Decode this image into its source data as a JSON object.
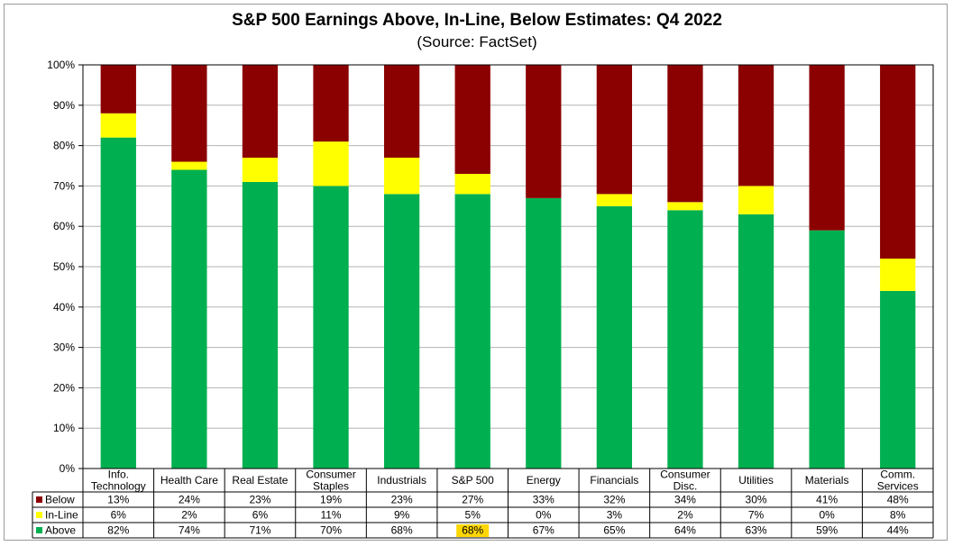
{
  "chart_data": {
    "type": "bar",
    "stacked": true,
    "title": "S&P 500 Earnings Above, In-Line, Below Estimates: Q4 2022",
    "subtitle": "(Source: FactSet)",
    "categories": [
      [
        "Info.",
        "Technology"
      ],
      [
        "Health Care"
      ],
      [
        "Real Estate"
      ],
      [
        "Consumer",
        "Staples"
      ],
      [
        "Industrials"
      ],
      [
        "S&P 500"
      ],
      [
        "Energy"
      ],
      [
        "Financials"
      ],
      [
        "Consumer",
        "Disc."
      ],
      [
        "Utilities"
      ],
      [
        "Materials"
      ],
      [
        "Comm.",
        "Services"
      ]
    ],
    "series": [
      {
        "name": "Above",
        "color": "#00b050",
        "values": [
          82,
          74,
          71,
          70,
          68,
          68,
          67,
          65,
          64,
          63,
          59,
          44
        ],
        "labels": [
          "82%",
          "74%",
          "71%",
          "70%",
          "68%",
          "68%",
          "67%",
          "65%",
          "64%",
          "63%",
          "59%",
          "44%"
        ]
      },
      {
        "name": "In-Line",
        "color": "#ffff00",
        "values": [
          6,
          2,
          6,
          11,
          9,
          5,
          0,
          3,
          2,
          7,
          0,
          8
        ],
        "labels": [
          "6%",
          "2%",
          "6%",
          "11%",
          "9%",
          "5%",
          "0%",
          "3%",
          "2%",
          "7%",
          "0%",
          "8%"
        ]
      },
      {
        "name": "Below",
        "color": "#8b0000",
        "values": [
          13,
          24,
          23,
          19,
          23,
          27,
          33,
          32,
          34,
          30,
          41,
          48
        ],
        "labels": [
          "13%",
          "24%",
          "23%",
          "19%",
          "23%",
          "27%",
          "33%",
          "32%",
          "34%",
          "30%",
          "41%",
          "48%"
        ]
      }
    ],
    "table_row_order": [
      "Below",
      "In-Line",
      "Above"
    ],
    "highlight": {
      "series": "Above",
      "category_index": 5,
      "color": "#ffd700"
    },
    "ylim": [
      0,
      100
    ],
    "yticks": [
      "0%",
      "10%",
      "20%",
      "30%",
      "40%",
      "50%",
      "60%",
      "70%",
      "80%",
      "90%",
      "100%"
    ],
    "grid": true,
    "legend": "data-table"
  }
}
